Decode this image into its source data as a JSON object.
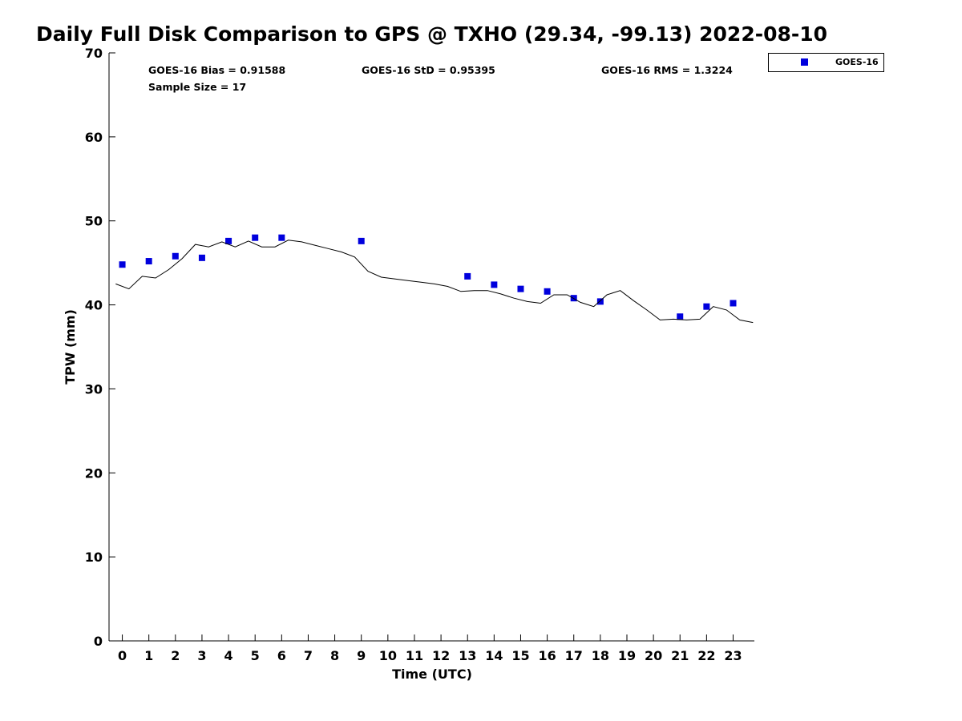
{
  "chart_data": {
    "type": "scatter",
    "title": "Daily Full Disk Comparison to GPS @ TXHO (29.34, -99.13) 2022-08-10",
    "xlabel": "Time (UTC)",
    "ylabel": "TPW (mm)",
    "xlim": [
      -0.5,
      23.8
    ],
    "ylim": [
      0,
      70
    ],
    "xticks": [
      0,
      1,
      2,
      3,
      4,
      5,
      6,
      7,
      8,
      9,
      10,
      11,
      12,
      13,
      14,
      15,
      16,
      17,
      18,
      19,
      20,
      21,
      22,
      23
    ],
    "xtick_labels": [
      "0",
      "1",
      "2",
      "3",
      "4",
      "5",
      "6",
      "7",
      "8",
      "9",
      "10",
      "11",
      "12",
      "13",
      "14",
      "15",
      "16",
      "17",
      "18",
      "19",
      "20",
      "21",
      "22",
      "23"
    ],
    "yticks": [
      0,
      10,
      20,
      30,
      40,
      50,
      60,
      70
    ],
    "ytick_labels": [
      "0",
      "10",
      "20",
      "30",
      "40",
      "50",
      "60",
      "70"
    ],
    "grid": false,
    "legend_position": "top-right",
    "stats": {
      "bias": "GOES-16 Bias = 0.91588",
      "std": "GOES-16 StD = 0.95395",
      "rms": "GOES-16 RMS = 1.3224",
      "sample": "Sample Size = 17"
    },
    "series": [
      {
        "name": "GOES-16",
        "kind": "scatter",
        "marker": "square",
        "color": "#0000dd",
        "x": [
          0,
          1,
          2,
          3,
          4,
          5,
          6,
          9,
          13,
          14,
          15,
          16,
          17,
          18,
          21,
          22,
          23
        ],
        "y": [
          44.8,
          45.2,
          45.8,
          45.6,
          47.6,
          48.0,
          48.0,
          47.6,
          43.4,
          42.4,
          41.9,
          41.6,
          40.8,
          40.4,
          38.6,
          39.8,
          40.2
        ]
      },
      {
        "kind": "line",
        "color": "#000000",
        "x": [
          -0.25,
          0.25,
          0.75,
          1.25,
          1.75,
          2.25,
          2.75,
          3.25,
          3.75,
          4.25,
          4.75,
          5.25,
          5.75,
          6.25,
          6.75,
          7.25,
          7.75,
          8.25,
          8.75,
          9.25,
          9.75,
          10.25,
          10.75,
          11.25,
          11.75,
          12.25,
          12.75,
          13.25,
          13.75,
          14.25,
          14.75,
          15.25,
          15.75,
          16.25,
          16.75,
          17.25,
          17.75,
          18.25,
          18.75,
          19.25,
          19.75,
          20.25,
          20.75,
          21.25,
          21.75,
          22.25,
          22.75,
          23.25,
          23.75
        ],
        "y": [
          42.5,
          41.9,
          43.4,
          43.2,
          44.2,
          45.5,
          47.2,
          46.9,
          47.5,
          46.9,
          47.6,
          46.9,
          46.9,
          47.7,
          47.5,
          47.1,
          46.7,
          46.3,
          45.7,
          44.0,
          43.3,
          43.1,
          42.9,
          42.7,
          42.5,
          42.2,
          41.6,
          41.7,
          41.7,
          41.3,
          40.8,
          40.4,
          40.2,
          41.2,
          41.2,
          40.3,
          39.8,
          41.2,
          41.7,
          40.5,
          39.4,
          38.2,
          38.3,
          38.2,
          38.3,
          39.8,
          39.4,
          38.2,
          37.9
        ]
      }
    ]
  }
}
